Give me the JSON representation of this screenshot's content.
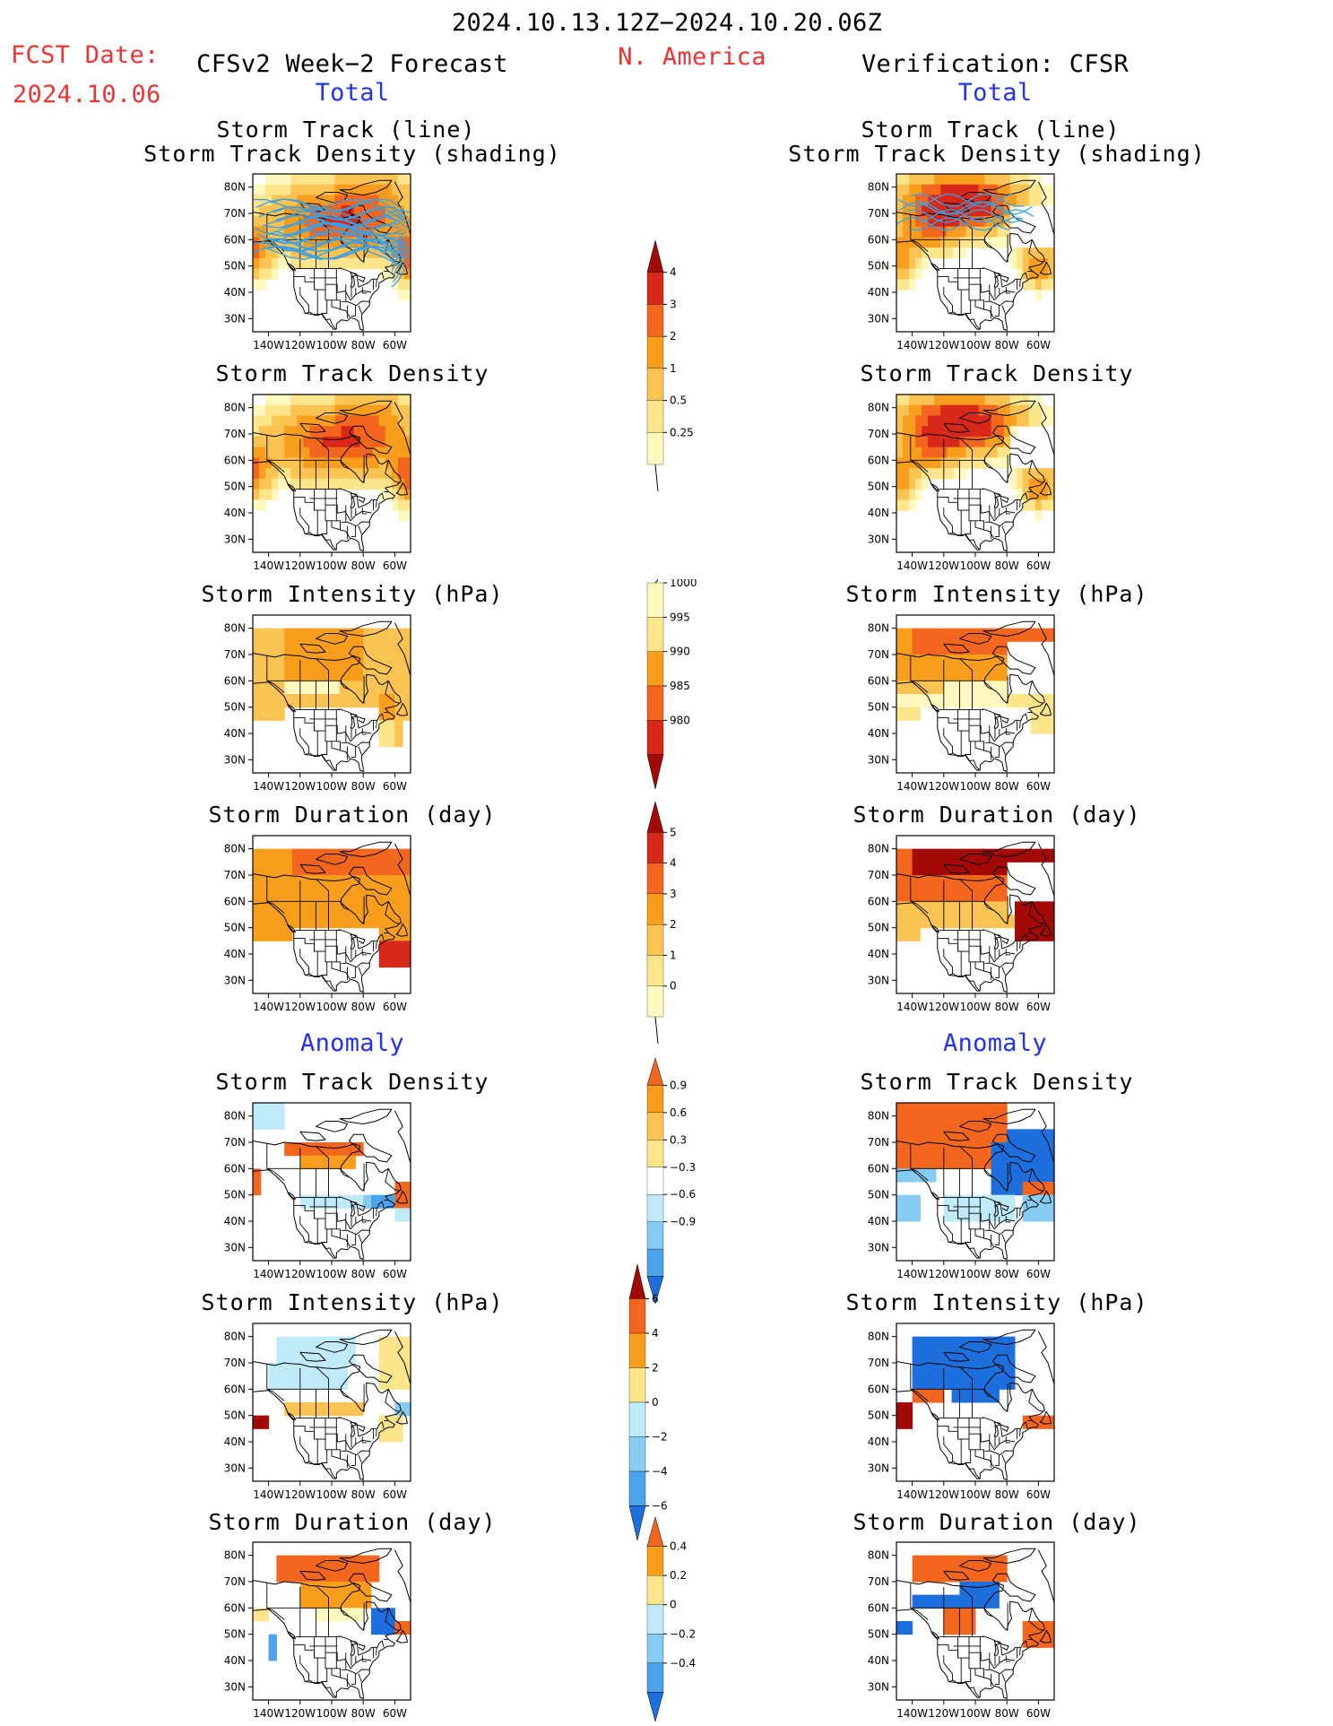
{
  "header": {
    "period": "2024.10.13.12Z−2024.10.20.06Z",
    "fcst_label": "FCST Date:",
    "fcst_date": "2024.10.06",
    "model": "CFSv2 Week−2 Forecast",
    "region": "N. America",
    "verification": "Verification: CFSR",
    "total_left": "Total",
    "total_right": "Total",
    "anomaly_left": "Anomaly",
    "anomaly_right": "Anomaly"
  },
  "panel_titles": {
    "track_line": "Storm Track (line)",
    "track_shading": "Storm Track Density (shading)",
    "density": "Storm Track Density",
    "intensity": "Storm Intensity (hPa)",
    "duration": "Storm Duration (day)"
  },
  "map_axes": {
    "lat_labels": [
      "80N",
      "70N",
      "60N",
      "50N",
      "40N",
      "30N"
    ],
    "lon_labels": [
      "140W",
      "120W",
      "100W",
      "80W",
      "60W"
    ]
  },
  "colors": {
    "warm": [
      "#fff9c0",
      "#fde58c",
      "#fbc452",
      "#f99d1c",
      "#f2661e",
      "#d8281a",
      "#a30a06"
    ],
    "cold": [
      "#bfeafa",
      "#86ccf2",
      "#4ba3ec",
      "#1d6fde"
    ],
    "track_line": "#3aa0e6",
    "title_red": "#ee3333",
    "title_blue": "#2233ee"
  },
  "colorbars": [
    {
      "id": "density_total",
      "labels": [
        "4",
        "3",
        "2",
        "1",
        "0.5",
        "0.25"
      ],
      "colors": [
        "#a30a06",
        "#d8281a",
        "#f2661e",
        "#f99d1c",
        "#fbc452",
        "#fde58c",
        "#fff9c0"
      ],
      "tail": "below"
    },
    {
      "id": "intensity_total",
      "labels": [
        "1000",
        "995",
        "990",
        "985",
        "980"
      ],
      "colors": [
        "#fff9c0",
        "#fde58c",
        "#f99d1c",
        "#f2661e",
        "#d8281a",
        "#a30a06"
      ],
      "tail": "above"
    },
    {
      "id": "duration_total",
      "labels": [
        "5",
        "4",
        "3",
        "2",
        "1",
        "0"
      ],
      "colors": [
        "#a30a06",
        "#d8281a",
        "#f2661e",
        "#f99d1c",
        "#fbc452",
        "#fde58c",
        "#fff9c0"
      ],
      "tail": "below"
    },
    {
      "id": "density_anom",
      "labels": [
        "0.9",
        "0.6",
        "0.3",
        "−0.3",
        "−0.6",
        "−0.9"
      ],
      "colors": [
        "#f2661e",
        "#f99d1c",
        "#fbc452",
        "#fde58c",
        "#ffffff",
        "#bfeafa",
        "#86ccf2",
        "#4ba3ec",
        "#1d6fde"
      ],
      "tail": "none"
    },
    {
      "id": "intensity_anom",
      "labels": [
        "6",
        "4",
        "2",
        "0",
        "−2",
        "−4",
        "−6"
      ],
      "colors": [
        "#a30a06",
        "#f2661e",
        "#f99d1c",
        "#fde58c",
        "#bfeafa",
        "#86ccf2",
        "#4ba3ec",
        "#1d6fde"
      ],
      "tail": "none"
    },
    {
      "id": "duration_anom",
      "labels": [
        "0.4",
        "0.2",
        "0",
        "−0.2",
        "−0.4"
      ],
      "colors": [
        "#f2661e",
        "#f99d1c",
        "#fde58c",
        "#bfeafa",
        "#86ccf2",
        "#4ba3ec",
        "#1d6fde"
      ],
      "tail": "none"
    }
  ]
}
